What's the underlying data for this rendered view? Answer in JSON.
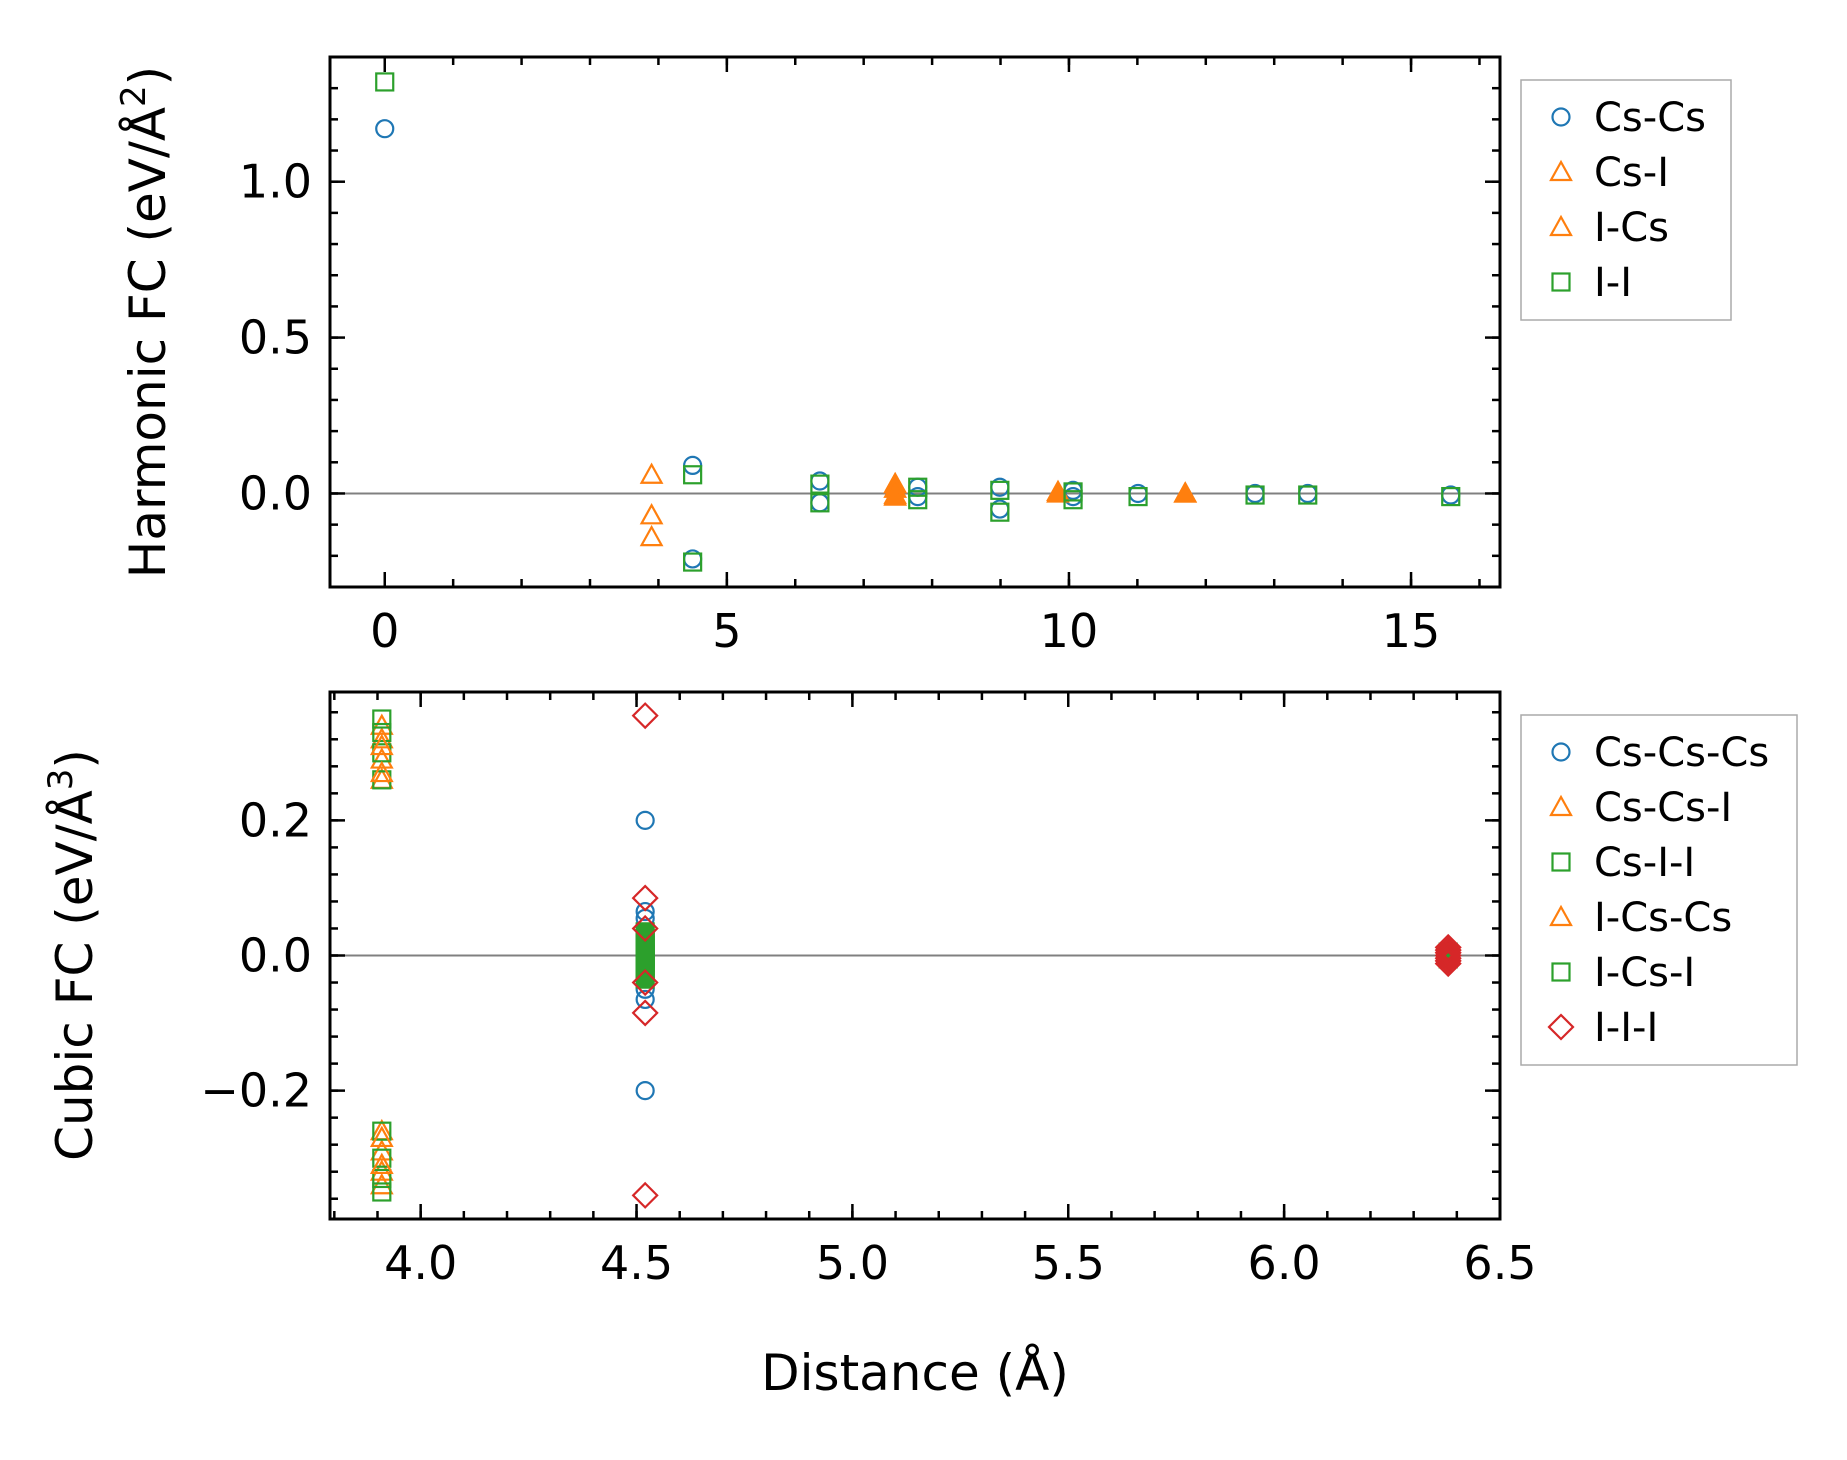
{
  "colors": {
    "Cs-Cs": "#1f77b4",
    "Cs-I": "#ff7f0e",
    "I-Cs": "#ff7f0e",
    "I-I": "#2ca02c",
    "Cs-Cs-Cs": "#1f77b4",
    "Cs-Cs-I": "#ff7f0e",
    "Cs-I-I": "#2ca02c",
    "I-Cs-Cs": "#ff7f0e",
    "I-Cs-I": "#2ca02c",
    "I-I-I": "#d62728",
    "zero_line": "#808080"
  },
  "chart_data": [
    {
      "type": "scatter",
      "name": "harmonic",
      "ylabel_prefix": "Harmonic FC (eV/Å",
      "ylabel_exp": "2",
      "ylabel_suffix": ")",
      "xlim": [
        -0.8,
        16.3
      ],
      "ylim": [
        -0.3,
        1.4
      ],
      "xticks": [
        0,
        5,
        10,
        15
      ],
      "xtick_labels": [
        "0",
        "5",
        "10",
        "15"
      ],
      "yticks": [
        0.0,
        0.5,
        1.0
      ],
      "ytick_labels": [
        "0.0",
        "0.5",
        "1.0"
      ],
      "legend": [
        "Cs-Cs",
        "Cs-I",
        "I-Cs",
        "I-I"
      ],
      "series": [
        {
          "name": "Cs-Cs",
          "marker": "circle",
          "x": [
            0,
            4.5,
            4.5,
            6.36,
            6.36,
            7.79,
            7.79,
            8.99,
            8.99,
            10.06,
            10.06,
            11.01,
            12.72,
            13.49,
            15.58
          ],
          "y": [
            1.17,
            0.09,
            -0.21,
            0.04,
            -0.03,
            0.02,
            -0.01,
            0.02,
            -0.05,
            0.01,
            -0.01,
            0.0,
            0.0,
            0.0,
            -0.005
          ]
        },
        {
          "name": "Cs-I",
          "marker": "triangle",
          "x": [
            3.9,
            3.9,
            3.9,
            7.46,
            7.46,
            9.84,
            11.7
          ],
          "y": [
            0.06,
            -0.07,
            -0.14,
            0.03,
            -0.01,
            0.005,
            0.0
          ]
        },
        {
          "name": "I-Cs",
          "marker": "triangle-filled",
          "x": [
            7.46,
            7.46,
            7.46,
            9.84,
            11.7
          ],
          "y": [
            0.03,
            0.015,
            -0.005,
            0.0,
            0.0
          ]
        },
        {
          "name": "I-I",
          "marker": "square",
          "x": [
            0,
            4.5,
            4.5,
            6.36,
            6.36,
            7.79,
            7.79,
            8.99,
            8.99,
            10.06,
            10.06,
            11.01,
            12.72,
            13.49,
            15.58
          ],
          "y": [
            1.32,
            0.06,
            -0.22,
            0.03,
            -0.03,
            0.02,
            -0.02,
            0.01,
            -0.06,
            0.005,
            -0.02,
            -0.01,
            -0.005,
            -0.005,
            -0.01
          ]
        }
      ]
    },
    {
      "type": "scatter",
      "name": "cubic",
      "ylabel_prefix": "Cubic FC (eV/Å",
      "ylabel_exp": "3",
      "ylabel_suffix": ")",
      "xlabel": "Distance (Å)",
      "xlim": [
        3.79,
        6.5
      ],
      "ylim": [
        -0.39,
        0.39
      ],
      "xticks": [
        4.0,
        4.5,
        5.0,
        5.5,
        6.0,
        6.5
      ],
      "xtick_labels": [
        "4.0",
        "4.5",
        "5.0",
        "5.5",
        "6.0",
        "6.5"
      ],
      "yticks": [
        -0.2,
        0.0,
        0.2
      ],
      "ytick_labels": [
        "−0.2",
        "0.0",
        "0.2"
      ],
      "legend": [
        "Cs-Cs-Cs",
        "Cs-Cs-I",
        "Cs-I-I",
        "I-Cs-Cs",
        "I-Cs-I",
        "I-I-I"
      ],
      "series": [
        {
          "name": "Cs-Cs-Cs",
          "marker": "circle",
          "x": [
            4.52,
            4.52,
            4.52,
            4.52,
            4.52,
            4.52,
            4.52
          ],
          "y": [
            0.2,
            0.065,
            0.055,
            -0.05,
            -0.065,
            -0.2,
            0.0
          ]
        },
        {
          "name": "Cs-Cs-I",
          "marker": "triangle",
          "x": [
            3.91,
            3.91,
            3.91,
            3.91,
            3.91,
            3.91,
            3.91,
            3.91
          ],
          "y": [
            0.34,
            0.32,
            0.29,
            0.26,
            -0.26,
            -0.29,
            -0.32,
            -0.34
          ]
        },
        {
          "name": "Cs-I-I",
          "marker": "square",
          "x": [
            3.91,
            3.91,
            3.91,
            3.91,
            3.91,
            3.91,
            3.91,
            3.91,
            4.52,
            4.52,
            4.52,
            4.52,
            4.52,
            4.52,
            4.52
          ],
          "y": [
            0.35,
            0.33,
            0.3,
            0.26,
            -0.26,
            -0.3,
            -0.33,
            -0.35,
            0.025,
            0.015,
            0.005,
            -0.005,
            -0.015,
            -0.025,
            0.0
          ]
        },
        {
          "name": "I-Cs-Cs",
          "marker": "triangle",
          "x": [
            3.91,
            3.91,
            3.91,
            3.91
          ],
          "y": [
            0.31,
            0.27,
            -0.27,
            -0.31
          ]
        },
        {
          "name": "I-Cs-I",
          "marker": "square-filled",
          "x": [
            4.52,
            4.52,
            4.52,
            4.52,
            4.52,
            4.52,
            4.52,
            6.38,
            6.38,
            6.38
          ],
          "y": [
            0.035,
            0.02,
            0.01,
            0.0,
            -0.01,
            -0.02,
            -0.035,
            0.005,
            0.0,
            -0.005
          ]
        },
        {
          "name": "I-I-I",
          "marker": "diamond",
          "x": [
            4.52,
            4.52,
            4.52,
            4.52,
            4.52,
            4.52,
            6.38,
            6.38,
            6.38,
            6.38,
            6.38,
            6.38,
            6.38
          ],
          "y": [
            0.355,
            0.085,
            0.04,
            -0.04,
            -0.085,
            -0.355,
            0.012,
            0.008,
            0.004,
            0.0,
            -0.004,
            -0.008,
            -0.012
          ]
        }
      ]
    }
  ]
}
